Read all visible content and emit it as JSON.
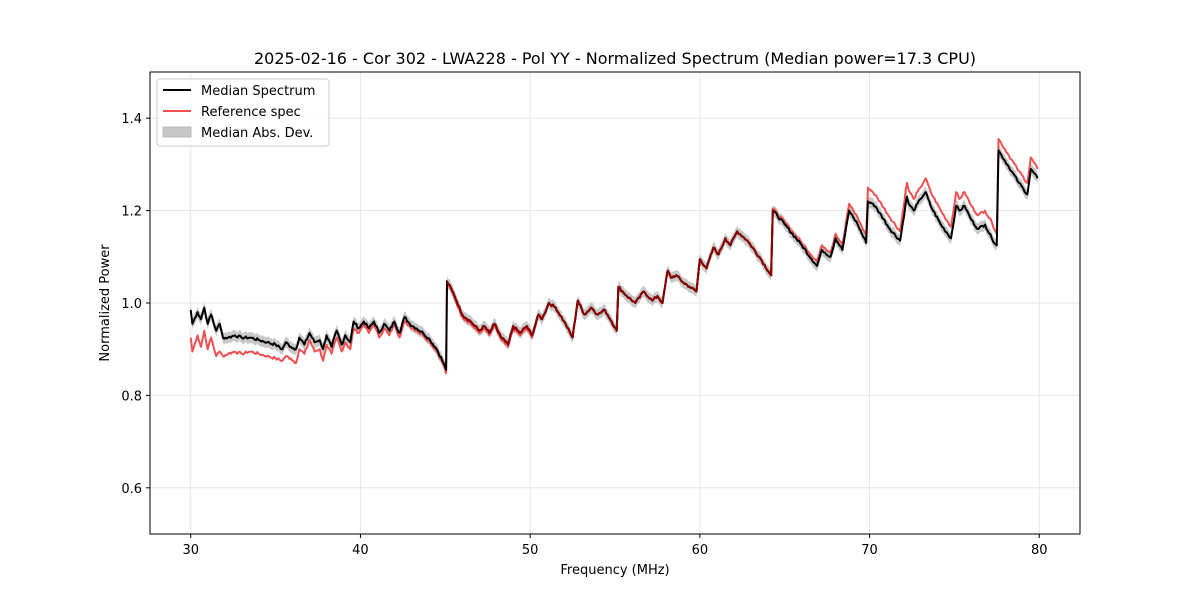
{
  "chart_data": {
    "type": "line",
    "title": "2025-02-16 - Cor 302 - LWA228 - Pol YY - Normalized Spectrum (Median power=17.3 CPU)",
    "xlabel": "Frequency (MHz)",
    "ylabel": "Normalized Power",
    "xlim": [
      27.6,
      82.4
    ],
    "ylim": [
      0.5,
      1.5
    ],
    "xticks": [
      30,
      40,
      50,
      60,
      70,
      80
    ],
    "xtick_labels": [
      "30",
      "40",
      "50",
      "60",
      "70",
      "80"
    ],
    "yticks": [
      0.6,
      0.8,
      1.0,
      1.2,
      1.4
    ],
    "ytick_labels": [
      "0.6",
      "0.8",
      "1.0",
      "1.2",
      "1.4"
    ],
    "grid": true,
    "legend": {
      "position": "top-left",
      "entries": [
        {
          "label": "Median Spectrum",
          "kind": "line",
          "color": "#000000"
        },
        {
          "label": "Reference spec",
          "kind": "line",
          "color": "#f05050"
        },
        {
          "label": "Median Abs. Dev.",
          "kind": "patch",
          "color": "#c8c8c8"
        }
      ]
    },
    "mad_halfwidth": 0.012,
    "series": [
      {
        "name": "Median Spectrum",
        "color": "#000000",
        "x": [
          30.0,
          30.1,
          30.4,
          30.6,
          30.8,
          31.0,
          31.2,
          31.5,
          31.7,
          31.9,
          32.2,
          32.6,
          33.0,
          33.5,
          34.0,
          34.5,
          35.0,
          35.4,
          35.6,
          35.9,
          36.2,
          36.4,
          36.7,
          37.0,
          37.3,
          37.6,
          37.8,
          38.0,
          38.3,
          38.6,
          38.9,
          39.1,
          39.4,
          39.6,
          39.9,
          40.2,
          40.5,
          40.8,
          41.1,
          41.4,
          41.7,
          42.0,
          42.3,
          42.6,
          42.9,
          43.3,
          43.7,
          44.1,
          44.5,
          44.9,
          45.05,
          45.1,
          45.5,
          46.0,
          46.5,
          47.0,
          47.3,
          47.6,
          47.9,
          48.3,
          48.7,
          49.0,
          49.4,
          49.8,
          50.1,
          50.5,
          50.7,
          51.1,
          51.5,
          52.0,
          52.5,
          52.8,
          53.2,
          53.6,
          54.0,
          54.4,
          54.8,
          55.1,
          55.2,
          55.7,
          56.2,
          56.7,
          57.2,
          57.5,
          57.8,
          58.1,
          58.3,
          58.6,
          59.0,
          59.4,
          59.8,
          60.0,
          60.4,
          60.8,
          61.1,
          61.5,
          61.8,
          62.2,
          62.8,
          63.5,
          64.2,
          64.3,
          65.0,
          66.0,
          66.9,
          67.2,
          67.7,
          68.0,
          68.4,
          68.8,
          69.3,
          69.8,
          69.9,
          70.2,
          70.6,
          71.2,
          71.8,
          72.2,
          72.3,
          72.6,
          73.0,
          73.3,
          73.6,
          74.2,
          74.8,
          75.1,
          75.3,
          75.6,
          76.0,
          76.4,
          76.8,
          77.2,
          77.5,
          77.6,
          78.2,
          78.8,
          79.3,
          79.5,
          79.9
        ],
        "y": [
          0.985,
          0.955,
          0.98,
          0.965,
          0.99,
          0.955,
          0.975,
          0.94,
          0.955,
          0.925,
          0.925,
          0.93,
          0.925,
          0.925,
          0.92,
          0.915,
          0.91,
          0.9,
          0.915,
          0.905,
          0.9,
          0.925,
          0.91,
          0.935,
          0.915,
          0.92,
          0.9,
          0.93,
          0.905,
          0.94,
          0.91,
          0.93,
          0.915,
          0.96,
          0.945,
          0.96,
          0.945,
          0.96,
          0.935,
          0.955,
          0.94,
          0.96,
          0.935,
          0.97,
          0.955,
          0.945,
          0.935,
          0.92,
          0.9,
          0.87,
          0.855,
          1.047,
          1.02,
          0.975,
          0.96,
          0.94,
          0.95,
          0.935,
          0.955,
          0.925,
          0.91,
          0.95,
          0.935,
          0.95,
          0.93,
          0.975,
          0.965,
          1.0,
          0.99,
          0.96,
          0.925,
          1.005,
          0.975,
          0.99,
          0.975,
          0.985,
          0.96,
          0.94,
          1.035,
          1.015,
          1.0,
          1.025,
          1.005,
          1.015,
          1.0,
          1.07,
          1.055,
          1.06,
          1.045,
          1.035,
          1.025,
          1.095,
          1.075,
          1.12,
          1.105,
          1.14,
          1.125,
          1.155,
          1.135,
          1.1,
          1.06,
          1.2,
          1.17,
          1.125,
          1.08,
          1.115,
          1.1,
          1.14,
          1.115,
          1.2,
          1.17,
          1.13,
          1.22,
          1.215,
          1.195,
          1.16,
          1.135,
          1.23,
          1.215,
          1.2,
          1.225,
          1.24,
          1.21,
          1.17,
          1.14,
          1.21,
          1.2,
          1.21,
          1.18,
          1.16,
          1.17,
          1.14,
          1.125,
          1.33,
          1.295,
          1.26,
          1.235,
          1.29,
          1.27
        ]
      },
      {
        "name": "Reference spec",
        "color": "#f05050",
        "x": [
          30.0,
          30.1,
          30.4,
          30.6,
          30.8,
          31.0,
          31.2,
          31.5,
          31.7,
          31.9,
          32.2,
          32.6,
          33.0,
          33.5,
          34.0,
          34.5,
          35.0,
          35.4,
          35.6,
          35.9,
          36.2,
          36.4,
          36.7,
          37.0,
          37.3,
          37.6,
          37.8,
          38.0,
          38.3,
          38.6,
          38.9,
          39.1,
          39.4,
          39.6,
          39.9,
          40.2,
          40.5,
          40.8,
          41.1,
          41.4,
          41.7,
          42.0,
          42.3,
          42.6,
          42.9,
          43.3,
          43.7,
          44.1,
          44.5,
          44.9,
          45.05,
          45.1,
          45.5,
          46.0,
          46.5,
          47.0,
          47.3,
          47.6,
          47.9,
          48.3,
          48.7,
          49.0,
          49.4,
          49.8,
          50.1,
          50.5,
          50.7,
          51.1,
          51.5,
          52.0,
          52.5,
          52.8,
          53.2,
          53.6,
          54.0,
          54.4,
          54.8,
          55.1,
          55.2,
          55.7,
          56.2,
          56.7,
          57.2,
          57.5,
          57.8,
          58.1,
          58.3,
          58.6,
          59.0,
          59.4,
          59.8,
          60.0,
          60.4,
          60.8,
          61.1,
          61.5,
          61.8,
          62.2,
          62.8,
          63.5,
          64.2,
          64.3,
          65.0,
          66.0,
          66.9,
          67.2,
          67.7,
          68.0,
          68.4,
          68.8,
          69.3,
          69.8,
          69.9,
          70.2,
          70.6,
          71.2,
          71.8,
          72.2,
          72.3,
          72.6,
          73.0,
          73.3,
          73.6,
          74.2,
          74.8,
          75.1,
          75.3,
          75.6,
          76.0,
          76.4,
          76.8,
          77.2,
          77.5,
          77.6,
          78.2,
          78.8,
          79.3,
          79.5,
          79.9
        ],
        "y": [
          0.925,
          0.895,
          0.93,
          0.905,
          0.94,
          0.9,
          0.925,
          0.885,
          0.895,
          0.885,
          0.89,
          0.895,
          0.89,
          0.895,
          0.89,
          0.885,
          0.88,
          0.875,
          0.885,
          0.88,
          0.87,
          0.9,
          0.89,
          0.92,
          0.895,
          0.9,
          0.875,
          0.91,
          0.89,
          0.925,
          0.895,
          0.915,
          0.9,
          0.945,
          0.935,
          0.955,
          0.935,
          0.955,
          0.925,
          0.945,
          0.93,
          0.955,
          0.925,
          0.96,
          0.95,
          0.94,
          0.93,
          0.915,
          0.895,
          0.865,
          0.848,
          1.045,
          1.015,
          0.97,
          0.955,
          0.935,
          0.945,
          0.93,
          0.95,
          0.92,
          0.905,
          0.945,
          0.93,
          0.945,
          0.925,
          0.975,
          0.965,
          1.0,
          0.99,
          0.96,
          0.925,
          1.005,
          0.975,
          0.99,
          0.975,
          0.985,
          0.96,
          0.94,
          1.035,
          1.015,
          1.0,
          1.025,
          1.005,
          1.015,
          1.0,
          1.07,
          1.055,
          1.06,
          1.045,
          1.035,
          1.025,
          1.095,
          1.075,
          1.12,
          1.105,
          1.14,
          1.125,
          1.155,
          1.135,
          1.1,
          1.06,
          1.205,
          1.175,
          1.13,
          1.09,
          1.125,
          1.11,
          1.15,
          1.125,
          1.215,
          1.185,
          1.145,
          1.25,
          1.24,
          1.22,
          1.185,
          1.155,
          1.26,
          1.245,
          1.225,
          1.25,
          1.27,
          1.24,
          1.2,
          1.165,
          1.24,
          1.225,
          1.24,
          1.21,
          1.19,
          1.2,
          1.175,
          1.15,
          1.355,
          1.32,
          1.285,
          1.26,
          1.315,
          1.29
        ]
      }
    ]
  }
}
